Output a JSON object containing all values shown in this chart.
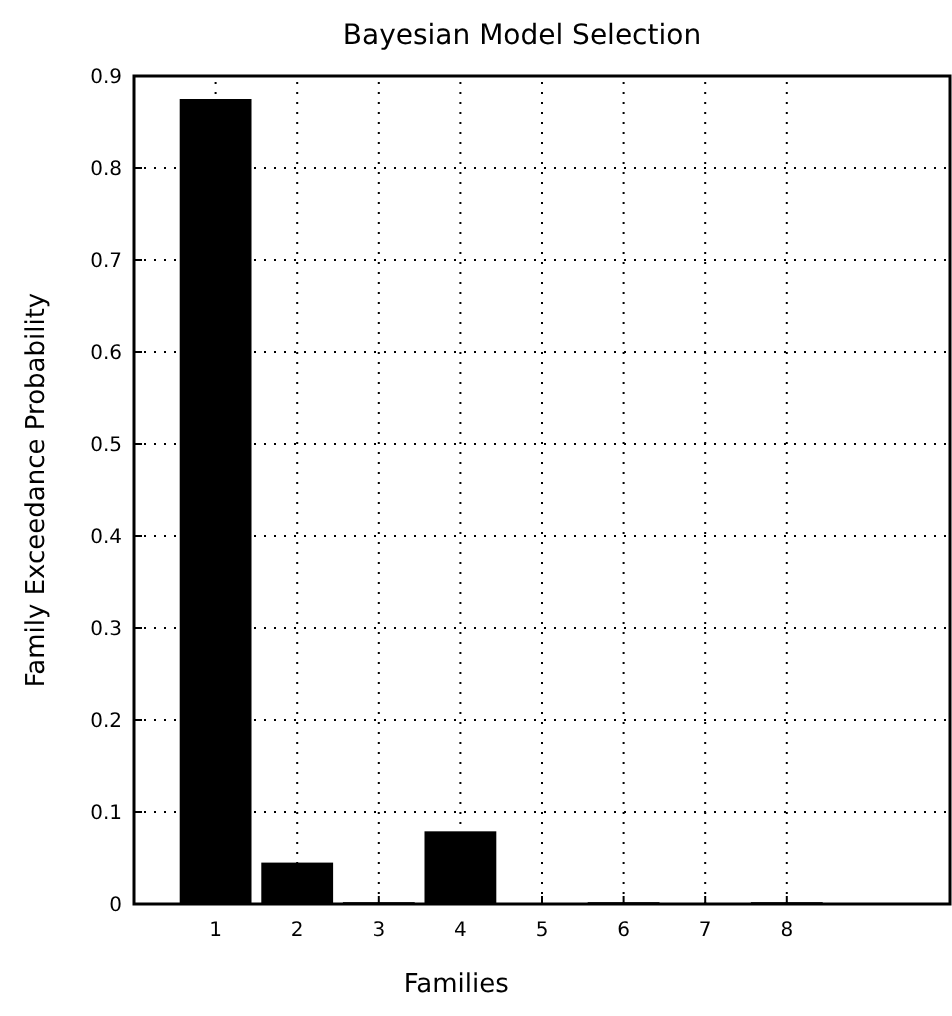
{
  "chart_data": {
    "type": "bar",
    "title": "Bayesian Model Selection",
    "xlabel": "Families",
    "ylabel": "Family Exceedance Probability",
    "x": [
      1,
      2,
      3,
      4,
      5,
      6,
      7,
      8
    ],
    "values": [
      0.875,
      0.045,
      0.002,
      0.079,
      0,
      0.002,
      0,
      0.002
    ],
    "color": "#000000",
    "xlim": [
      0,
      10
    ],
    "xticks": [
      1,
      2,
      3,
      4,
      5,
      6,
      7,
      8
    ],
    "ylim": [
      0,
      0.9
    ],
    "yticks": [
      0,
      0.1,
      0.2,
      0.3,
      0.4,
      0.5,
      0.6,
      0.7,
      0.8,
      0.9
    ],
    "grid": true
  }
}
